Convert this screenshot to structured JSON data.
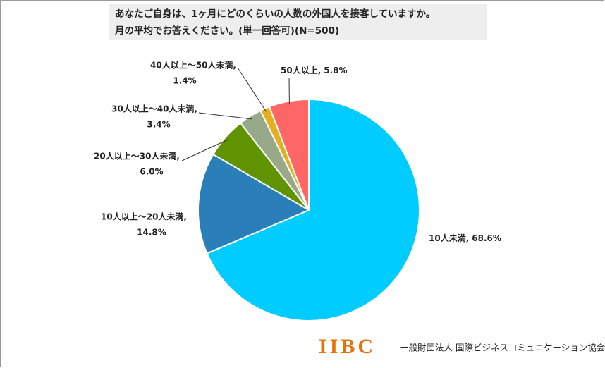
{
  "chart_data": {
    "type": "pie",
    "title": [
      "あなたご自身は、1ヶ月にどのくらいの人数の外国人を接客していますか。",
      "月の平均でお答えください。(単一回答可)(N=500)"
    ],
    "categories": [
      "10人未満,",
      "10人以上～20人未満,",
      "20人以上～30人未満,",
      "30人以上～40人未満,",
      "40人以上～50人未満,",
      "50人以上,"
    ],
    "values": [
      68.6,
      14.8,
      6.0,
      3.4,
      1.4,
      5.8
    ],
    "value_labels": [
      "68.6%",
      "14.8%",
      "6.0%",
      "3.4%",
      "1.4%",
      "5.8%"
    ],
    "colors": [
      "#00ccff",
      "#2a7fb8",
      "#5f9400",
      "#98a98a",
      "#e4b020",
      "#ff6666"
    ],
    "logo": "IIBC",
    "organization": "一般財団法人 国際ビジネスコミュニケーション協会"
  }
}
